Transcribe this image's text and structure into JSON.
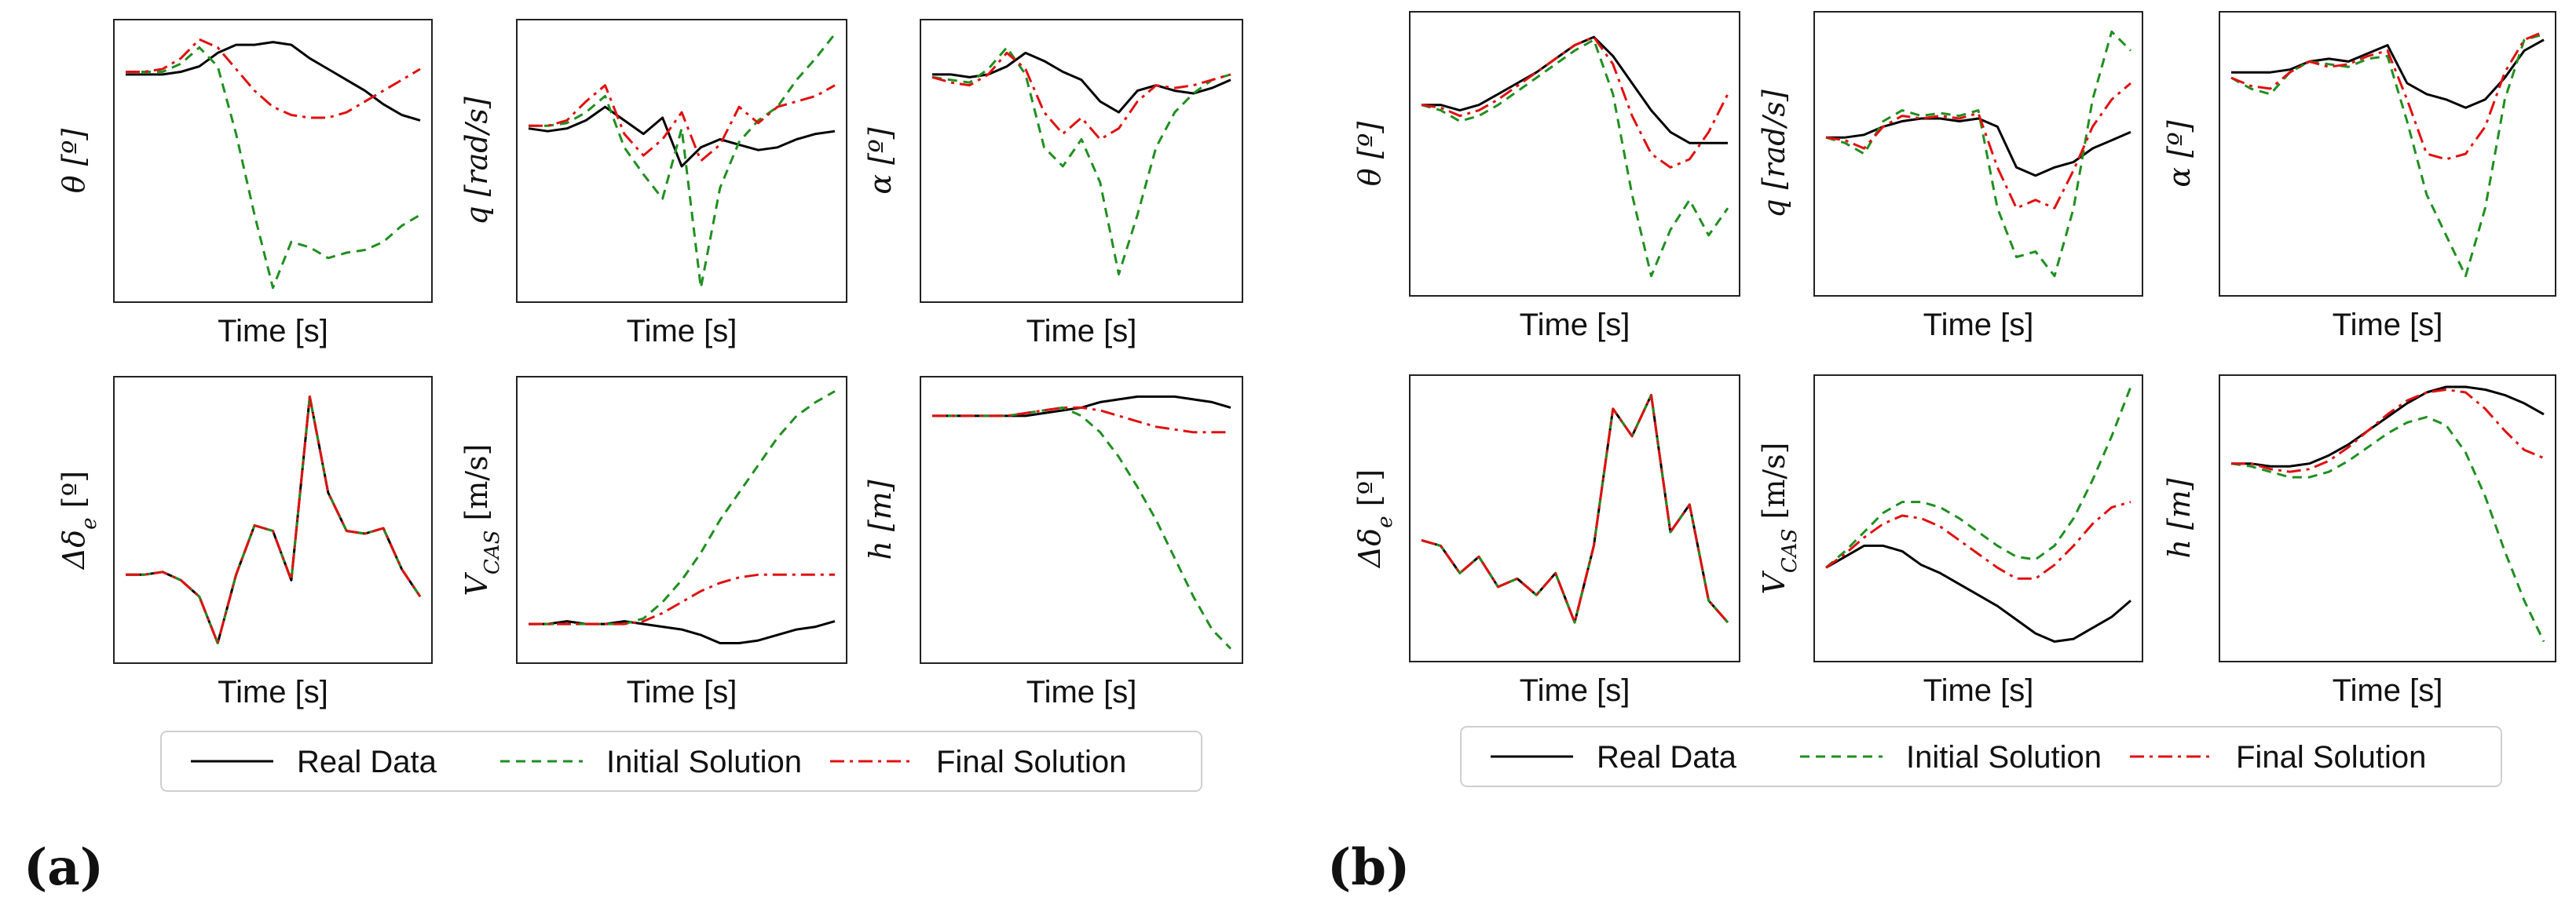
{
  "legend": {
    "real": "Real Data",
    "initial": "Initial Solution",
    "final": "Final Solution"
  },
  "colors": {
    "real": "#000000",
    "initial": "#1f8f1f",
    "final": "#e01010",
    "panel_bg": "#f4f4f4",
    "plot_bg": "#ffffff"
  },
  "panel_labels": {
    "a": "(a)",
    "b": "(b)"
  },
  "chart_data": [
    {
      "panel": "a",
      "type": "line",
      "xlabel": "Time [s]",
      "ylabel": "θ [º]",
      "grid": false,
      "ylim": [
        0,
        1
      ],
      "series": [
        {
          "name": "Real Data",
          "values": [
            0.82,
            0.82,
            0.82,
            0.83,
            0.85,
            0.9,
            0.93,
            0.93,
            0.94,
            0.93,
            0.88,
            0.84,
            0.8,
            0.76,
            0.71,
            0.67,
            0.65
          ]
        },
        {
          "name": "Initial Solution",
          "values": [
            0.83,
            0.83,
            0.83,
            0.86,
            0.92,
            0.85,
            0.6,
            0.3,
            0.03,
            0.2,
            0.18,
            0.14,
            0.16,
            0.17,
            0.2,
            0.26,
            0.3
          ]
        },
        {
          "name": "Final Solution",
          "values": [
            0.83,
            0.83,
            0.84,
            0.88,
            0.95,
            0.92,
            0.84,
            0.76,
            0.7,
            0.67,
            0.66,
            0.66,
            0.68,
            0.72,
            0.76,
            0.8,
            0.84
          ]
        }
      ]
    },
    {
      "panel": "a",
      "type": "line",
      "xlabel": "Time [s]",
      "ylabel": "q [rad/s]",
      "grid": false,
      "ylim": [
        0,
        1
      ],
      "series": [
        {
          "name": "Real Data",
          "values": [
            0.62,
            0.61,
            0.62,
            0.65,
            0.7,
            0.65,
            0.6,
            0.66,
            0.48,
            0.55,
            0.58,
            0.56,
            0.54,
            0.55,
            0.58,
            0.6,
            0.61
          ]
        },
        {
          "name": "Initial Solution",
          "values": [
            0.63,
            0.63,
            0.64,
            0.68,
            0.74,
            0.55,
            0.45,
            0.36,
            0.62,
            0.03,
            0.4,
            0.57,
            0.65,
            0.7,
            0.8,
            0.88,
            0.97
          ]
        },
        {
          "name": "Final Solution",
          "values": [
            0.63,
            0.63,
            0.65,
            0.72,
            0.78,
            0.6,
            0.52,
            0.58,
            0.68,
            0.5,
            0.56,
            0.7,
            0.64,
            0.7,
            0.72,
            0.74,
            0.78
          ]
        }
      ]
    },
    {
      "panel": "a",
      "type": "line",
      "xlabel": "Time [s]",
      "ylabel": "α [º]",
      "grid": false,
      "ylim": [
        0,
        1
      ],
      "series": [
        {
          "name": "Real Data",
          "values": [
            0.82,
            0.82,
            0.81,
            0.82,
            0.85,
            0.9,
            0.87,
            0.83,
            0.8,
            0.72,
            0.68,
            0.76,
            0.78,
            0.76,
            0.75,
            0.77,
            0.8
          ]
        },
        {
          "name": "Initial Solution",
          "values": [
            0.81,
            0.8,
            0.79,
            0.84,
            0.92,
            0.82,
            0.55,
            0.48,
            0.58,
            0.42,
            0.08,
            0.3,
            0.55,
            0.68,
            0.75,
            0.8,
            0.82
          ]
        },
        {
          "name": "Final Solution",
          "values": [
            0.81,
            0.79,
            0.78,
            0.82,
            0.9,
            0.84,
            0.68,
            0.6,
            0.66,
            0.58,
            0.62,
            0.72,
            0.78,
            0.77,
            0.78,
            0.8,
            0.82
          ]
        }
      ]
    },
    {
      "panel": "a",
      "type": "line",
      "xlabel": "Time [s]",
      "ylabel": "Δδ_e [º]",
      "grid": false,
      "ylim": [
        0,
        1
      ],
      "series": [
        {
          "name": "Real Data",
          "values": [
            0.3,
            0.3,
            0.31,
            0.28,
            0.22,
            0.05,
            0.3,
            0.48,
            0.46,
            0.28,
            0.95,
            0.6,
            0.46,
            0.45,
            0.47,
            0.32,
            0.22
          ]
        },
        {
          "name": "Initial Solution",
          "values": [
            0.3,
            0.3,
            0.31,
            0.28,
            0.22,
            0.05,
            0.3,
            0.48,
            0.46,
            0.28,
            0.95,
            0.6,
            0.46,
            0.45,
            0.47,
            0.32,
            0.22
          ]
        },
        {
          "name": "Final Solution",
          "values": [
            0.3,
            0.3,
            0.31,
            0.28,
            0.22,
            0.05,
            0.3,
            0.48,
            0.46,
            0.28,
            0.95,
            0.6,
            0.46,
            0.45,
            0.47,
            0.32,
            0.22
          ]
        }
      ]
    },
    {
      "panel": "a",
      "type": "line",
      "xlabel": "Time [s]",
      "ylabel": "V_CAS [m/s]",
      "grid": false,
      "ylim": [
        0,
        1
      ],
      "series": [
        {
          "name": "Real Data",
          "values": [
            0.12,
            0.12,
            0.13,
            0.12,
            0.12,
            0.13,
            0.12,
            0.11,
            0.1,
            0.08,
            0.05,
            0.05,
            0.06,
            0.08,
            0.1,
            0.11,
            0.13
          ]
        },
        {
          "name": "Initial Solution",
          "values": [
            0.12,
            0.12,
            0.12,
            0.12,
            0.12,
            0.12,
            0.14,
            0.2,
            0.28,
            0.38,
            0.5,
            0.6,
            0.7,
            0.8,
            0.88,
            0.93,
            0.97
          ]
        },
        {
          "name": "Final Solution",
          "values": [
            0.12,
            0.12,
            0.12,
            0.12,
            0.12,
            0.12,
            0.13,
            0.16,
            0.2,
            0.24,
            0.27,
            0.29,
            0.3,
            0.3,
            0.3,
            0.3,
            0.3
          ]
        }
      ]
    },
    {
      "panel": "a",
      "type": "line",
      "xlabel": "Time [s]",
      "ylabel": "h [m]",
      "grid": false,
      "ylim": [
        0,
        1
      ],
      "series": [
        {
          "name": "Real Data",
          "values": [
            0.88,
            0.88,
            0.88,
            0.88,
            0.88,
            0.88,
            0.89,
            0.9,
            0.91,
            0.93,
            0.94,
            0.95,
            0.95,
            0.95,
            0.94,
            0.93,
            0.91
          ]
        },
        {
          "name": "Initial Solution",
          "values": [
            0.88,
            0.88,
            0.88,
            0.88,
            0.88,
            0.89,
            0.9,
            0.91,
            0.88,
            0.82,
            0.73,
            0.62,
            0.5,
            0.36,
            0.22,
            0.1,
            0.03
          ]
        },
        {
          "name": "Final Solution",
          "values": [
            0.88,
            0.88,
            0.88,
            0.88,
            0.88,
            0.89,
            0.9,
            0.91,
            0.91,
            0.9,
            0.88,
            0.86,
            0.84,
            0.83,
            0.82,
            0.82,
            0.82
          ]
        }
      ]
    },
    {
      "panel": "b",
      "type": "line",
      "xlabel": "Time [s]",
      "ylabel": "θ [º]",
      "grid": false,
      "ylim": [
        0,
        1
      ],
      "series": [
        {
          "name": "Real Data",
          "values": [
            0.68,
            0.68,
            0.66,
            0.68,
            0.72,
            0.76,
            0.8,
            0.85,
            0.9,
            0.93,
            0.86,
            0.76,
            0.66,
            0.58,
            0.54,
            0.54,
            0.54
          ]
        },
        {
          "name": "Initial Solution",
          "values": [
            0.68,
            0.66,
            0.62,
            0.64,
            0.68,
            0.73,
            0.78,
            0.83,
            0.88,
            0.92,
            0.72,
            0.35,
            0.05,
            0.22,
            0.33,
            0.2,
            0.3
          ]
        },
        {
          "name": "Final Solution",
          "values": [
            0.68,
            0.67,
            0.64,
            0.66,
            0.7,
            0.75,
            0.8,
            0.85,
            0.9,
            0.93,
            0.83,
            0.64,
            0.5,
            0.45,
            0.48,
            0.58,
            0.72
          ]
        }
      ]
    },
    {
      "panel": "b",
      "type": "line",
      "xlabel": "Time [s]",
      "ylabel": "q [rad/s]",
      "grid": false,
      "ylim": [
        0,
        1
      ],
      "series": [
        {
          "name": "Real Data",
          "values": [
            0.56,
            0.56,
            0.57,
            0.6,
            0.62,
            0.63,
            0.63,
            0.62,
            0.63,
            0.6,
            0.45,
            0.42,
            0.45,
            0.47,
            0.52,
            0.55,
            0.58
          ]
        },
        {
          "name": "Initial Solution",
          "values": [
            0.56,
            0.54,
            0.5,
            0.62,
            0.66,
            0.64,
            0.65,
            0.64,
            0.66,
            0.3,
            0.12,
            0.14,
            0.05,
            0.3,
            0.7,
            0.95,
            0.88
          ]
        },
        {
          "name": "Final Solution",
          "values": [
            0.56,
            0.55,
            0.52,
            0.6,
            0.64,
            0.63,
            0.64,
            0.63,
            0.65,
            0.45,
            0.3,
            0.33,
            0.3,
            0.44,
            0.6,
            0.7,
            0.76
          ]
        }
      ]
    },
    {
      "panel": "b",
      "type": "line",
      "xlabel": "Time [s]",
      "ylabel": "α [º]",
      "grid": false,
      "ylim": [
        0,
        1
      ],
      "series": [
        {
          "name": "Real Data",
          "values": [
            0.8,
            0.8,
            0.8,
            0.81,
            0.84,
            0.85,
            0.84,
            0.87,
            0.9,
            0.76,
            0.72,
            0.7,
            0.67,
            0.7,
            0.78,
            0.88,
            0.92
          ]
        },
        {
          "name": "Initial Solution",
          "values": [
            0.78,
            0.74,
            0.72,
            0.8,
            0.84,
            0.83,
            0.82,
            0.85,
            0.86,
            0.62,
            0.35,
            0.2,
            0.05,
            0.3,
            0.7,
            0.92,
            0.94
          ]
        },
        {
          "name": "Final Solution",
          "values": [
            0.78,
            0.75,
            0.74,
            0.8,
            0.84,
            0.82,
            0.83,
            0.86,
            0.88,
            0.7,
            0.5,
            0.48,
            0.5,
            0.6,
            0.8,
            0.92,
            0.95
          ]
        }
      ]
    },
    {
      "panel": "b",
      "type": "line",
      "xlabel": "Time [s]",
      "ylabel": "Δδ_e [º]",
      "grid": false,
      "ylim": [
        0,
        1
      ],
      "series": [
        {
          "name": "Real Data",
          "values": [
            0.42,
            0.4,
            0.3,
            0.36,
            0.25,
            0.28,
            0.22,
            0.3,
            0.12,
            0.4,
            0.9,
            0.8,
            0.95,
            0.45,
            0.55,
            0.2,
            0.12
          ]
        },
        {
          "name": "Initial Solution",
          "values": [
            0.42,
            0.4,
            0.3,
            0.36,
            0.25,
            0.28,
            0.22,
            0.3,
            0.12,
            0.4,
            0.9,
            0.8,
            0.95,
            0.45,
            0.55,
            0.2,
            0.12
          ]
        },
        {
          "name": "Final Solution",
          "values": [
            0.42,
            0.4,
            0.3,
            0.36,
            0.25,
            0.28,
            0.22,
            0.3,
            0.12,
            0.4,
            0.9,
            0.8,
            0.95,
            0.45,
            0.55,
            0.2,
            0.12
          ]
        }
      ]
    },
    {
      "panel": "b",
      "type": "line",
      "xlabel": "Time [s]",
      "ylabel": "V_CAS [m/s]",
      "grid": false,
      "ylim": [
        0,
        1
      ],
      "series": [
        {
          "name": "Real Data",
          "values": [
            0.32,
            0.36,
            0.4,
            0.4,
            0.38,
            0.33,
            0.3,
            0.26,
            0.22,
            0.18,
            0.13,
            0.08,
            0.05,
            0.06,
            0.1,
            0.14,
            0.2
          ]
        },
        {
          "name": "Initial Solution",
          "values": [
            0.32,
            0.38,
            0.45,
            0.52,
            0.56,
            0.56,
            0.54,
            0.5,
            0.45,
            0.4,
            0.36,
            0.35,
            0.4,
            0.5,
            0.64,
            0.8,
            0.98
          ]
        },
        {
          "name": "Final Solution",
          "values": [
            0.32,
            0.37,
            0.43,
            0.48,
            0.51,
            0.5,
            0.47,
            0.42,
            0.37,
            0.32,
            0.28,
            0.28,
            0.33,
            0.4,
            0.48,
            0.54,
            0.56
          ]
        }
      ]
    },
    {
      "panel": "b",
      "type": "line",
      "xlabel": "Time [s]",
      "ylabel": "h [m]",
      "grid": false,
      "ylim": [
        0,
        1
      ],
      "series": [
        {
          "name": "Real Data",
          "values": [
            0.7,
            0.7,
            0.69,
            0.69,
            0.7,
            0.73,
            0.77,
            0.82,
            0.87,
            0.92,
            0.96,
            0.98,
            0.98,
            0.97,
            0.95,
            0.92,
            0.88
          ]
        },
        {
          "name": "Initial Solution",
          "values": [
            0.7,
            0.69,
            0.67,
            0.65,
            0.65,
            0.67,
            0.71,
            0.76,
            0.81,
            0.85,
            0.87,
            0.84,
            0.74,
            0.58,
            0.38,
            0.2,
            0.05
          ]
        },
        {
          "name": "Final Solution",
          "values": [
            0.7,
            0.7,
            0.68,
            0.67,
            0.68,
            0.71,
            0.76,
            0.82,
            0.88,
            0.93,
            0.96,
            0.97,
            0.96,
            0.9,
            0.82,
            0.75,
            0.72
          ]
        }
      ]
    }
  ]
}
